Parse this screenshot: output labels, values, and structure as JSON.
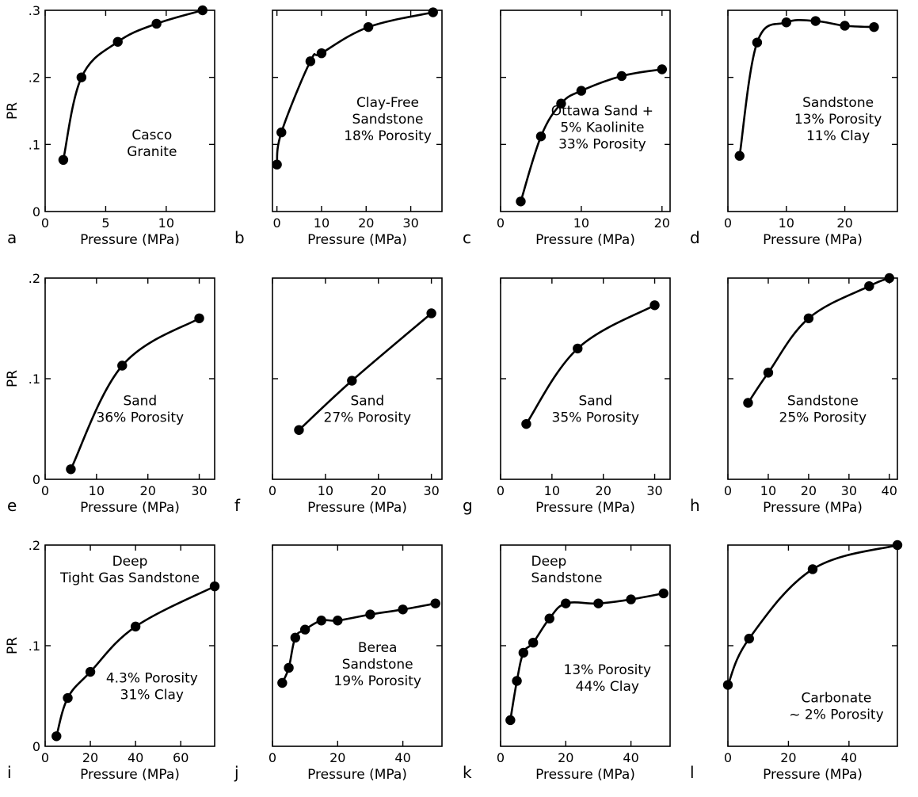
{
  "chart_data": [
    {
      "panel": "a",
      "type": "line",
      "xlabel": "Pressure (MPa)",
      "ylabel": "PR",
      "xlim": [
        0,
        14
      ],
      "ylim": [
        0,
        0.3
      ],
      "xticks": [
        0,
        5,
        10
      ],
      "yticks": [
        0,
        0.1,
        0.2,
        0.3
      ],
      "ytick_labels": [
        "0",
        ".1",
        ".2",
        ".3"
      ],
      "annotation": [
        "Casco",
        "Granite"
      ],
      "x": [
        1.5,
        3,
        6,
        9.2,
        13
      ],
      "y": [
        0.077,
        0.2,
        0.253,
        0.28,
        0.3
      ]
    },
    {
      "panel": "b",
      "type": "line",
      "xlabel": "Pressure (MPa)",
      "ylabel": "",
      "xlim": [
        -1,
        37
      ],
      "ylim": [
        0,
        0.3
      ],
      "xticks": [
        0,
        10,
        20,
        30
      ],
      "yticks": [
        0,
        0.1,
        0.2,
        0.3
      ],
      "ytick_labels": [],
      "annotation": [
        "Clay-Free",
        "Sandstone",
        "18% Porosity"
      ],
      "x": [
        0,
        1,
        7.5,
        10,
        20.5,
        35
      ],
      "y": [
        0.07,
        0.118,
        0.224,
        0.236,
        0.275,
        0.297
      ]
    },
    {
      "panel": "c",
      "type": "line",
      "xlabel": "Pressure (MPa)",
      "ylabel": "",
      "xlim": [
        0,
        21
      ],
      "ylim": [
        0,
        0.3
      ],
      "xticks": [
        0,
        10,
        20
      ],
      "yticks": [
        0,
        0.1,
        0.2,
        0.3
      ],
      "ytick_labels": [],
      "annotation": [
        "Ottawa Sand +",
        "5% Kaolinite",
        "33% Porosity"
      ],
      "x": [
        2.5,
        5,
        7.5,
        10,
        15,
        20
      ],
      "y": [
        0.015,
        0.112,
        0.161,
        0.18,
        0.202,
        0.212
      ]
    },
    {
      "panel": "d",
      "type": "line",
      "xlabel": "Pressure (MPa)",
      "ylabel": "",
      "xlim": [
        0,
        29
      ],
      "ylim": [
        0,
        0.3
      ],
      "xticks": [
        0,
        10,
        20
      ],
      "yticks": [
        0,
        0.1,
        0.2,
        0.3
      ],
      "ytick_labels": [],
      "annotation": [
        "Sandstone",
        "13% Porosity",
        "11% Clay"
      ],
      "x": [
        2,
        5,
        10,
        15,
        20,
        25
      ],
      "y": [
        0.083,
        0.252,
        0.282,
        0.284,
        0.277,
        0.275
      ]
    },
    {
      "panel": "e",
      "type": "line",
      "xlabel": "Pressure (MPa)",
      "ylabel": "PR",
      "xlim": [
        0,
        33
      ],
      "ylim": [
        0,
        0.2
      ],
      "xticks": [
        0,
        10,
        20,
        30
      ],
      "yticks": [
        0,
        0.1,
        0.2
      ],
      "ytick_labels": [
        "0",
        ".1",
        ".2"
      ],
      "annotation": [
        "Sand",
        "36% Porosity"
      ],
      "x": [
        5,
        15,
        30
      ],
      "y": [
        0.01,
        0.113,
        0.16
      ]
    },
    {
      "panel": "f",
      "type": "line",
      "xlabel": "Pressure (MPa)",
      "ylabel": "",
      "xlim": [
        0,
        32
      ],
      "ylim": [
        0,
        0.2
      ],
      "xticks": [
        0,
        10,
        20,
        30
      ],
      "yticks": [
        0,
        0.1,
        0.2
      ],
      "ytick_labels": [],
      "annotation": [
        "Sand",
        "27% Porosity"
      ],
      "x": [
        5,
        15,
        30
      ],
      "y": [
        0.049,
        0.098,
        0.165
      ]
    },
    {
      "panel": "g",
      "type": "line",
      "xlabel": "Pressure (MPa)",
      "ylabel": "",
      "xlim": [
        0,
        33
      ],
      "ylim": [
        0,
        0.2
      ],
      "xticks": [
        0,
        10,
        20,
        30
      ],
      "yticks": [
        0,
        0.1,
        0.2
      ],
      "ytick_labels": [],
      "annotation": [
        "Sand",
        "35% Porosity"
      ],
      "x": [
        5,
        15,
        30
      ],
      "y": [
        0.055,
        0.13,
        0.173
      ]
    },
    {
      "panel": "h",
      "type": "line",
      "xlabel": "Pressure (MPa)",
      "ylabel": "",
      "xlim": [
        0,
        42
      ],
      "ylim": [
        0,
        0.2
      ],
      "xticks": [
        0,
        10,
        20,
        30,
        40
      ],
      "yticks": [
        0,
        0.1,
        0.2
      ],
      "ytick_labels": [],
      "annotation": [
        "Sandstone",
        "25% Porosity"
      ],
      "x": [
        5,
        10,
        20,
        35,
        40
      ],
      "y": [
        0.076,
        0.106,
        0.16,
        0.192,
        0.2
      ]
    },
    {
      "panel": "i",
      "type": "line",
      "xlabel": "Pressure (MPa)",
      "ylabel": "PR",
      "xlim": [
        0,
        75
      ],
      "ylim": [
        0,
        0.2
      ],
      "xticks": [
        0,
        20,
        40,
        60
      ],
      "yticks": [
        0,
        0.1,
        0.2
      ],
      "ytick_labels": [
        "0",
        ".1",
        ".2"
      ],
      "annotation_top": [
        "Deep",
        "Tight Gas Sandstone"
      ],
      "annotation": [
        "4.3% Porosity",
        "31% Clay"
      ],
      "x": [
        5,
        10,
        20,
        40,
        75
      ],
      "y": [
        0.01,
        0.048,
        0.074,
        0.119,
        0.159
      ]
    },
    {
      "panel": "j",
      "type": "line",
      "xlabel": "Pressure (MPa)",
      "ylabel": "",
      "xlim": [
        0,
        52
      ],
      "ylim": [
        0,
        0.2
      ],
      "xticks": [
        0,
        20,
        40
      ],
      "yticks": [
        0,
        0.1,
        0.2
      ],
      "ytick_labels": [],
      "annotation": [
        "Berea",
        "Sandstone",
        "19% Porosity"
      ],
      "x": [
        3,
        5,
        7,
        10,
        15,
        20,
        30,
        40,
        50
      ],
      "y": [
        0.063,
        0.078,
        0.108,
        0.116,
        0.125,
        0.125,
        0.131,
        0.136,
        0.142
      ]
    },
    {
      "panel": "k",
      "type": "line",
      "xlabel": "Pressure (MPa)",
      "ylabel": "",
      "xlim": [
        0,
        52
      ],
      "ylim": [
        0,
        0.2
      ],
      "xticks": [
        0,
        20,
        40
      ],
      "yticks": [
        0,
        0.1,
        0.2
      ],
      "ytick_labels": [],
      "annotation_top": [
        "Deep",
        "Sandstone"
      ],
      "annotation": [
        "13% Porosity",
        "44% Clay"
      ],
      "x": [
        3,
        5,
        7,
        10,
        15,
        20,
        30,
        40,
        50
      ],
      "y": [
        0.026,
        0.065,
        0.093,
        0.103,
        0.127,
        0.142,
        0.142,
        0.146,
        0.152
      ]
    },
    {
      "panel": "l",
      "type": "line",
      "xlabel": "Pressure (MPa)",
      "ylabel": "",
      "xlim": [
        0,
        56
      ],
      "ylim": [
        0,
        0.2
      ],
      "xticks": [
        0,
        20,
        40
      ],
      "yticks": [
        0,
        0.1,
        0.2
      ],
      "ytick_labels": [],
      "annotation": [
        "Carbonate",
        "~ 2% Porosity"
      ],
      "x": [
        0,
        7,
        28,
        56
      ],
      "y": [
        0.061,
        0.107,
        0.176,
        0.2
      ]
    }
  ]
}
